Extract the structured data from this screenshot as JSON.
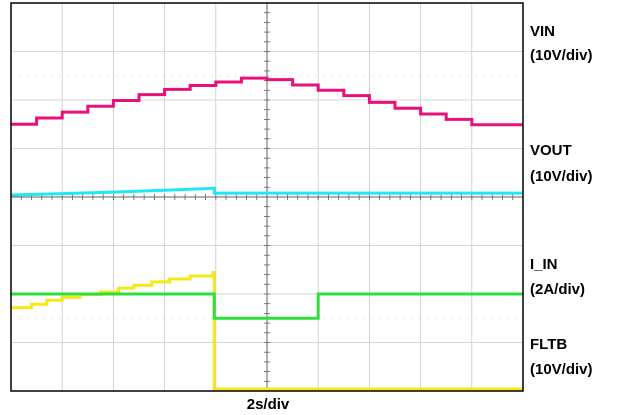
{
  "chart_data": {
    "type": "line",
    "grid": true,
    "x_divisions": 10,
    "y_divisions": 8,
    "xlabel": "2s/div",
    "series": [
      {
        "name": "VIN",
        "scale": "(10V/div)",
        "color": "#e8117c",
        "x": [
          0,
          0.5,
          0.5,
          1,
          1,
          1.5,
          1.5,
          2,
          2,
          2.5,
          2.5,
          3,
          3,
          3.5,
          3.5,
          4,
          4,
          4.5,
          4.5,
          5,
          5,
          5.5,
          5.5,
          6,
          6,
          6.5,
          6.5,
          7,
          7,
          7.5,
          7.5,
          8,
          8,
          8.5,
          8.5,
          9,
          9,
          9.5,
          9.5,
          10
        ],
        "y": [
          2.65,
          2.65,
          2.78,
          2.78,
          2.9,
          2.9,
          3.02,
          3.02,
          3.14,
          3.14,
          3.26,
          3.26,
          3.37,
          3.37,
          3.45,
          3.45,
          3.52,
          3.52,
          3.6,
          3.6,
          3.57,
          3.57,
          3.46,
          3.46,
          3.35,
          3.35,
          3.24,
          3.24,
          3.1,
          3.1,
          2.98,
          2.98,
          2.86,
          2.86,
          2.75,
          2.75,
          2.64,
          2.64,
          2.64,
          2.64
        ]
      },
      {
        "name": "VOUT",
        "scale": "(10V/div)",
        "color": "#f5e817",
        "x": [
          0,
          0.4,
          0.4,
          0.7,
          0.7,
          1,
          1,
          1.35,
          1.35,
          1.75,
          1.75,
          2.1,
          2.1,
          2.4,
          2.4,
          2.75,
          2.75,
          3.1,
          3.1,
          3.5,
          3.5,
          3.95,
          3.95,
          3.97,
          3.97,
          10
        ],
        "y": [
          1.72,
          1.72,
          1.79,
          1.79,
          1.87,
          1.87,
          1.93,
          1.93,
          1.99,
          1.99,
          2.04,
          2.04,
          2.12,
          2.12,
          2.18,
          2.18,
          2.25,
          2.25,
          2.31,
          2.31,
          2.37,
          2.37,
          2.44,
          2.44,
          0.04,
          0.04
        ]
      },
      {
        "name": "I_IN",
        "scale": "(2A/div)",
        "color": "#1de8f5",
        "x": [
          0,
          1,
          2,
          3,
          3.97,
          3.97,
          10
        ],
        "y": [
          1.94,
          1.97,
          2.0,
          2.04,
          2.08,
          1.98,
          1.98
        ]
      },
      {
        "name": "FLTB",
        "scale": "(10V/div)",
        "color": "#2edf3c",
        "x": [
          0,
          3.97,
          3.97,
          6.0,
          6.0,
          10
        ],
        "y": [
          1.0,
          1.0,
          0.5,
          0.5,
          1.0,
          1.0
        ]
      }
    ],
    "trace_offsets_div": [
      2.85,
      0.0,
      2.1,
      1.0
    ]
  }
}
